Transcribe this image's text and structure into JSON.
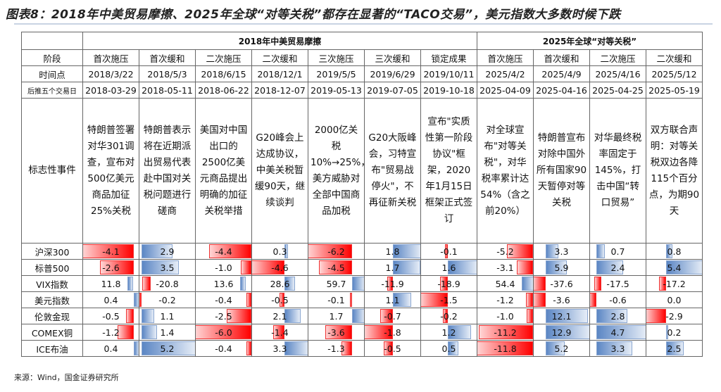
{
  "title": "图表8：2018年中美贸易摩擦、2025年全球“对等关税”都存在显著的“TACO交易”，美元指数大多数时候下跌",
  "groups": [
    "2018年中美贸易摩擦",
    "2025年全球“对等关税”"
  ],
  "stage_label": "阶段",
  "stages": [
    "首次施压",
    "首次缓和",
    "二次施压",
    "二次缓和",
    "三次施压",
    "三次缓和",
    "锁定成果",
    "首次施压",
    "首次缓和",
    "二次施压",
    "二次缓和"
  ],
  "date_label": "时间点",
  "dates": [
    "2018/3/22",
    "2018/5/3",
    "2018/6/15",
    "2018/12/1",
    "2019/5/5",
    "2019/6/29",
    "2019/10/11",
    "2025/4/2",
    "2025/4/9",
    "2025/4/16",
    "2025/5/12"
  ],
  "after_label": "后推五个交易日",
  "after_dates": [
    "2018-03-29",
    "2018-05-11",
    "2018-06-22",
    "2018-12-07",
    "2019-05-13",
    "2019-07-05",
    "2019-10-18",
    "2025-04-09",
    "2025-04-16",
    "2025-04-25",
    "2025-05-19"
  ],
  "event_label": "标志性事件",
  "events": [
    "特朗普签署对华301调查，宣布对500亿美元商品加征25%关税",
    "特朗普表示将在近期派出贸易代表赴中国对关税问题进行磋商",
    "美国对中国出口的2500亿美元商品提出明确的加征关税举措",
    "G20峰会上达成协议，中美关税暂缓90天，继续谈判",
    "2000亿关税10%→25%，美方威胁对全部中国商品加税",
    "G20大阪峰会，习特宣布\"贸易战停火\"，不再征新关税",
    "宣布\"实质性第一阶段协议\"框架，2020年1月15日框架正式签订",
    "对全球宣布\"对等关税\"，对华税率累计达54%（含之前20%）",
    "特朗普宣布对除中国外所有国家90天暂停对等关税",
    "对华最终税率固定于145%，打击中国“转口贸易”",
    "双方联合声明：对等关税双边各降115个百分点，为期90天"
  ],
  "rows": [
    {
      "label": "沪深300",
      "values": [
        -4.1,
        2.9,
        -4.4,
        0.3,
        -6.2,
        1.8,
        -0.1,
        -5.2,
        3.3,
        0.7,
        0.8
      ]
    },
    {
      "label": "标普500",
      "values": [
        -2.6,
        3.5,
        -1.0,
        -4.6,
        -4.5,
        1.7,
        1.6,
        -3.1,
        5.9,
        2.4,
        5.4
      ]
    },
    {
      "label": "VIX指数",
      "values": [
        11.8,
        -20.8,
        13.6,
        28.6,
        59.7,
        -11.9,
        -18.9,
        54.4,
        -37.6,
        -17.5,
        -17.2
      ]
    },
    {
      "label": "美元指数",
      "values": [
        0.4,
        -0.2,
        -0.4,
        -0.5,
        -0.1,
        1.1,
        -1.5,
        -1.2,
        -3.6,
        -0.6,
        0.0
      ]
    },
    {
      "label": "伦敦金现",
      "values": [
        -0.5,
        1.1,
        -2.5,
        2.1,
        1.7,
        -0.7,
        -0.2,
        -1.0,
        12.1,
        2.8,
        -2.9
      ]
    },
    {
      "label": "COMEX铜",
      "values": [
        -1.2,
        1.4,
        -6.0,
        -1.4,
        -3.6,
        -1.8,
        1.2,
        -11.2,
        12.9,
        4.7,
        0.2
      ]
    },
    {
      "label": "ICE布油",
      "values": [
        0.4,
        5.2,
        -0.4,
        3.3,
        -1.3,
        -0.5,
        0.5,
        -11.8,
        5.2,
        3.3,
        2.5
      ]
    }
  ],
  "colors": {
    "negative": "#ff0000",
    "positive": "#5b86c4"
  },
  "source": "来源：Wind，国金证券研究所"
}
